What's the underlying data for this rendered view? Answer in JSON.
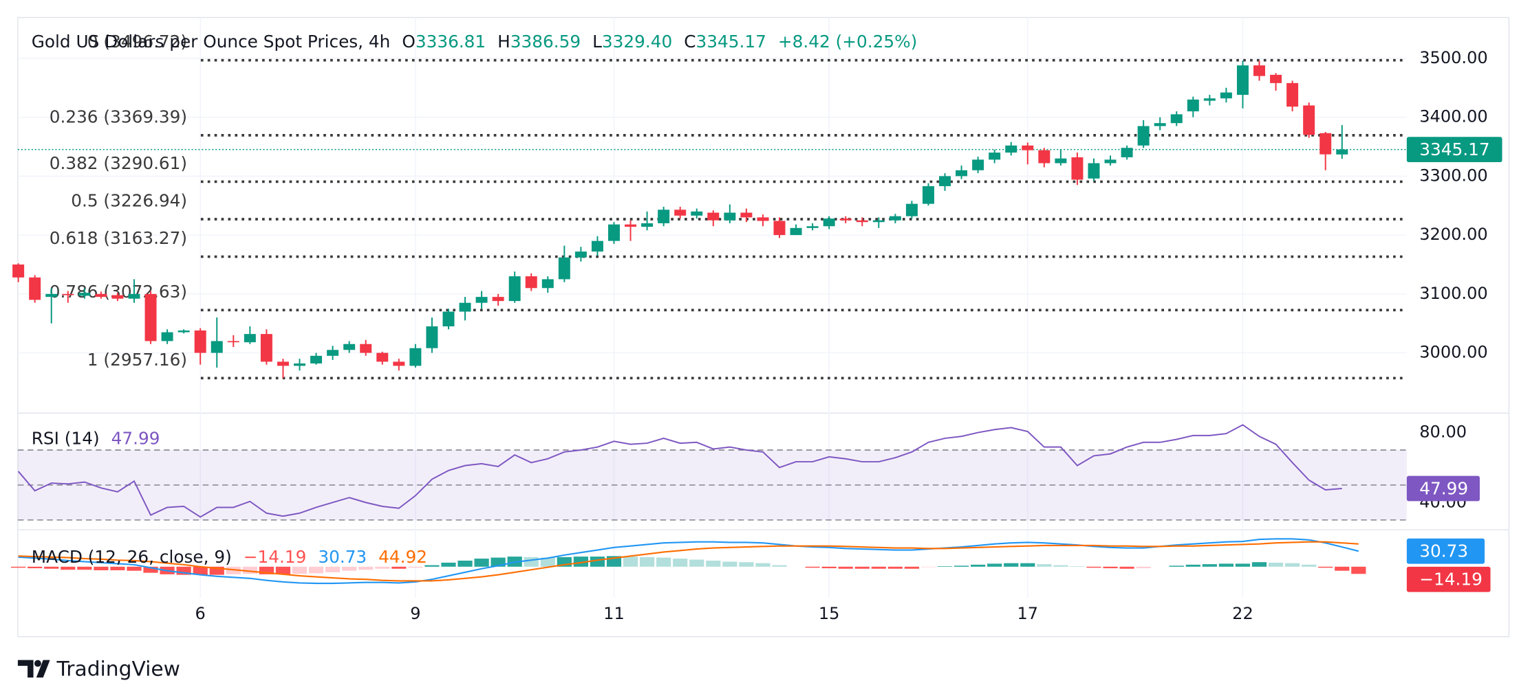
{
  "brand": "TradingView",
  "chart_data": [
    {
      "type": "candlestick",
      "title": "Gold US Dollars per Ounce Spot Prices, 4h",
      "ohlc_legend": [
        {
          "label": "O",
          "value": 3336.81
        },
        {
          "label": "H",
          "value": 3386.59
        },
        {
          "label": "L",
          "value": 3329.4,
          "value_label": "3329.40"
        },
        {
          "label": "C",
          "value": 3345.17
        }
      ],
      "change": "+8.42 (+0.25%)",
      "categories": [
        null,
        null,
        null,
        null,
        null,
        null,
        null,
        null,
        null,
        null,
        null,
        "6",
        null,
        null,
        null,
        null,
        null,
        null,
        null,
        null,
        null,
        null,
        null,
        null,
        "9",
        null,
        null,
        null,
        null,
        null,
        null,
        null,
        null,
        null,
        null,
        null,
        "11",
        null,
        null,
        null,
        null,
        null,
        null,
        null,
        null,
        null,
        null,
        null,
        null,
        "15",
        null,
        null,
        null,
        null,
        null,
        null,
        null,
        null,
        null,
        null,
        null,
        "17",
        null,
        null,
        null,
        null,
        null,
        null,
        null,
        null,
        null,
        null,
        null,
        null,
        "22",
        null,
        null,
        null,
        null,
        null,
        null
      ],
      "open": [
        3150,
        3128,
        3095,
        3100,
        3097,
        3100,
        3098,
        3092,
        3100,
        3020,
        3035,
        3038,
        3000,
        3020,
        3018,
        3032,
        2985,
        2978,
        2982,
        2995,
        3005,
        3015,
        3000,
        2985,
        2978,
        3008,
        3045,
        3070,
        3085,
        3095,
        3088,
        3130,
        3110,
        3125,
        3162,
        3172,
        3190,
        3218,
        3214,
        3220,
        3243,
        3233,
        3238,
        3225,
        3238,
        3230,
        3224,
        3200,
        3212,
        3215,
        3228,
        3225,
        3222,
        3225,
        3232,
        3253,
        3283,
        3300,
        3310,
        3328,
        3340,
        3352,
        3344,
        3322,
        3332,
        3296,
        3322,
        3332,
        3352,
        3385,
        3390,
        3410,
        3428,
        3432,
        3438,
        3488,
        3472,
        3458,
        3420,
        3373,
        3336.81
      ],
      "high": [
        3152,
        3132,
        3110,
        3105,
        3110,
        3104,
        3102,
        3125,
        3105,
        3040,
        3040,
        3042,
        3060,
        3030,
        3045,
        3040,
        2990,
        2990,
        3000,
        3012,
        3020,
        3022,
        3002,
        2990,
        3015,
        3060,
        3075,
        3095,
        3105,
        3100,
        3138,
        3135,
        3130,
        3182,
        3180,
        3198,
        3222,
        3225,
        3240,
        3248,
        3248,
        3245,
        3242,
        3252,
        3245,
        3235,
        3230,
        3218,
        3220,
        3232,
        3232,
        3230,
        3230,
        3236,
        3258,
        3288,
        3305,
        3318,
        3333,
        3345,
        3358,
        3357,
        3348,
        3345,
        3340,
        3330,
        3335,
        3352,
        3395,
        3400,
        3410,
        3435,
        3438,
        3450,
        3496,
        3496,
        3475,
        3462,
        3425,
        3375,
        3386.59
      ],
      "low": [
        3120,
        3085,
        3050,
        3085,
        3092,
        3092,
        3088,
        3085,
        3015,
        3015,
        3033,
        2980,
        2975,
        3010,
        3015,
        2980,
        2957,
        2970,
        2980,
        2988,
        3000,
        2995,
        2980,
        2970,
        2975,
        3000,
        3040,
        3055,
        3075,
        3080,
        3085,
        3105,
        3102,
        3120,
        3155,
        3165,
        3185,
        3190,
        3208,
        3215,
        3228,
        3228,
        3215,
        3220,
        3222,
        3215,
        3195,
        3200,
        3208,
        3210,
        3220,
        3215,
        3212,
        3220,
        3228,
        3250,
        3275,
        3295,
        3305,
        3322,
        3335,
        3320,
        3315,
        3318,
        3285,
        3292,
        3318,
        3328,
        3348,
        3378,
        3385,
        3400,
        3420,
        3425,
        3415,
        3462,
        3445,
        3410,
        3365,
        3310,
        3329.4
      ],
      "close": [
        3128,
        3090,
        3100,
        3098,
        3102,
        3095,
        3092,
        3100,
        3020,
        3035,
        3038,
        3000,
        3020,
        3018,
        3032,
        2985,
        2978,
        2982,
        2995,
        3005,
        3015,
        3000,
        2985,
        2978,
        3008,
        3045,
        3070,
        3085,
        3095,
        3088,
        3130,
        3110,
        3125,
        3162,
        3172,
        3190,
        3218,
        3214,
        3220,
        3243,
        3233,
        3240,
        3225,
        3238,
        3230,
        3224,
        3200,
        3212,
        3215,
        3228,
        3225,
        3222,
        3225,
        3232,
        3253,
        3283,
        3300,
        3310,
        3328,
        3340,
        3352,
        3344,
        3322,
        3330,
        3294,
        3322,
        3328,
        3348,
        3385,
        3390,
        3405,
        3430,
        3432,
        3442,
        3488,
        3470,
        3458,
        3418,
        3370,
        3337,
        3345.17
      ],
      "up_color": "#089981",
      "down_color": "#f23645",
      "ylim": [
        2897.7,
        3569.3
      ],
      "yticks": [
        {
          "value": 3000,
          "label": "3000.00"
        },
        {
          "value": 3100,
          "label": "3100.00"
        },
        {
          "value": 3200,
          "label": "3200.00"
        },
        {
          "value": 3300,
          "label": "3300.00"
        },
        {
          "value": 3400,
          "label": "3400.00"
        },
        {
          "value": 3500,
          "label": "3500.00"
        }
      ],
      "grid": true,
      "fib_levels": [
        {
          "value": 3496.72,
          "label": "0 (3496.72)"
        },
        {
          "value": 3369.39,
          "label": "0.236 (3369.39)"
        },
        {
          "value": 3290.61,
          "label": "0.382 (3290.61)"
        },
        {
          "value": 3226.94,
          "label": "0.5 (3226.94)"
        },
        {
          "value": 3163.27,
          "label": "0.618 (3163.27)"
        },
        {
          "value": 3072.63,
          "label": "0.786 (3072.63)"
        },
        {
          "value": 2957.16,
          "label": "1 (2957.16)"
        }
      ],
      "last_price": {
        "value": 3345.17,
        "color": "#089981"
      }
    },
    {
      "type": "line",
      "title": "RSI (14)",
      "series": [
        {
          "color": "#7e57c2",
          "values": [
            57.8,
            46.7,
            51.1,
            50.6,
            51.7,
            48.3,
            46.1,
            52.2,
            32.8,
            37.2,
            37.8,
            31.7,
            37.2,
            37.2,
            40.6,
            33.9,
            32.2,
            33.9,
            37.2,
            40.0,
            42.8,
            40.0,
            37.8,
            36.7,
            43.9,
            53.3,
            58.3,
            61.1,
            62.2,
            60.6,
            67.2,
            62.8,
            65.0,
            68.9,
            70.0,
            71.7,
            75.0,
            73.3,
            73.9,
            76.7,
            73.9,
            74.4,
            70.6,
            71.7,
            70.0,
            68.9,
            60.0,
            63.3,
            63.3,
            66.1,
            65.0,
            63.3,
            63.3,
            65.6,
            68.9,
            74.4,
            76.7,
            77.8,
            80.0,
            81.7,
            82.8,
            80.6,
            71.7,
            71.7,
            61.1,
            66.7,
            67.8,
            71.7,
            74.4,
            74.4,
            76.1,
            78.3,
            78.3,
            79.4,
            84.4,
            77.8,
            73.3,
            62.8,
            52.8,
            47.2,
            47.99
          ]
        }
      ],
      "ylim": [
        24.4,
        91.1
      ],
      "yticks": [
        {
          "value": 80,
          "label": "80.00"
        },
        {
          "value": 40,
          "label": "40.00"
        }
      ],
      "levels": [
        70,
        50,
        30
      ]
    },
    {
      "type": "macd",
      "title": "MACD (12, 26, close, 9)",
      "histogram": {
        "colors": [
          "#26a69a",
          "#b2dfdb",
          "#ff5252",
          "#ffcdd2"
        ],
        "last_label": "−14.19",
        "values": [
          -2,
          -3,
          -4,
          -6,
          -6,
          -7,
          -7,
          -8,
          -12,
          -15,
          -16,
          -16,
          -16,
          -15,
          -14,
          -15,
          -15,
          -14,
          -13,
          -11,
          -8,
          -6,
          -4,
          -4,
          -2,
          3,
          8,
          12,
          16,
          18,
          20,
          19,
          18,
          19,
          20,
          20,
          21,
          20,
          19,
          18,
          16,
          14,
          12,
          10,
          9,
          7,
          3,
          0,
          -2,
          -3,
          -4,
          -4,
          -4,
          -4,
          -4,
          -1,
          1,
          2,
          4,
          6,
          7,
          7,
          5,
          3,
          1,
          -2,
          -3,
          -4,
          -3,
          0,
          2,
          4,
          5,
          6,
          6,
          9,
          8,
          7,
          4,
          -2,
          -8,
          -14.19
        ]
      },
      "series": [
        {
          "color": "#2196f3",
          "values": [
            19,
            17,
            15,
            12,
            10,
            8,
            6,
            4,
            -2,
            -8,
            -12,
            -16,
            -19,
            -21,
            -23,
            -27,
            -30,
            -32,
            -33,
            -33,
            -32,
            -31,
            -31,
            -32,
            -30,
            -25,
            -18,
            -11,
            -4,
            2,
            9,
            13,
            17,
            23,
            28,
            33,
            38,
            41,
            44,
            47,
            48,
            49,
            49,
            48,
            48,
            47,
            44,
            41,
            39,
            38,
            36,
            35,
            34,
            33,
            33,
            35,
            37,
            39,
            42,
            45,
            47,
            48,
            47,
            45,
            43,
            40,
            38,
            37,
            37,
            40,
            43,
            45,
            47,
            49,
            50,
            54,
            55,
            55,
            53,
            47,
            39,
            30.73
          ]
        },
        {
          "color": "#ff6d00",
          "values": [
            21,
            20,
            19,
            18,
            16,
            15,
            13,
            12,
            10,
            7,
            4,
            0,
            -3,
            -6,
            -9,
            -12,
            -15,
            -18,
            -20,
            -22,
            -24,
            -25,
            -27,
            -28,
            -28,
            -28,
            -26,
            -23,
            -20,
            -16,
            -11,
            -6,
            -1,
            4,
            8,
            13,
            17,
            21,
            25,
            29,
            32,
            35,
            37,
            38,
            39,
            40,
            41,
            41,
            41,
            41,
            40,
            39,
            38,
            37,
            37,
            36,
            36,
            37,
            38,
            39,
            40,
            41,
            42,
            42,
            42,
            42,
            41,
            41,
            40,
            40,
            41,
            41,
            42,
            43,
            44,
            45,
            47,
            48,
            49,
            49,
            47,
            44.92
          ]
        }
      ],
      "ylim": [
        -61.5,
        73
      ]
    }
  ]
}
